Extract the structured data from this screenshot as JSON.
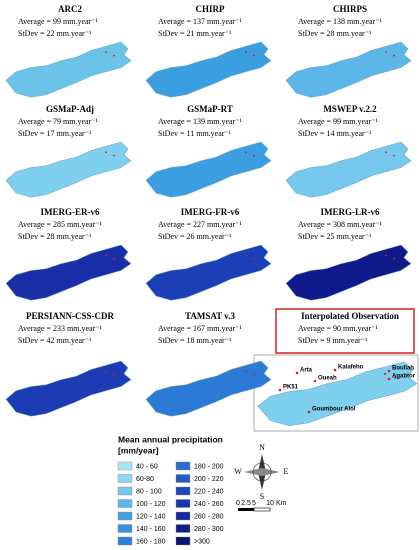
{
  "panels": [
    {
      "title": "ARC2",
      "average": "Average = 99 mm.year⁻¹",
      "stdev": "StDev = 22 mm.year⁻¹",
      "color": "#6cc3e8"
    },
    {
      "title": "CHIRP",
      "average": "Average = 137 mm.year⁻¹",
      "stdev": "StDev = 21 mm.year⁻¹",
      "color": "#3a9ee0"
    },
    {
      "title": "CHIRPS",
      "average": "Average = 138 mm.year⁻¹",
      "stdev": "StDev = 28 mm.year⁻¹",
      "color": "#5cb6e8"
    },
    {
      "title": "GSMaP-Adj",
      "average": "Average = 79 mm.year⁻¹",
      "stdev": "StDev = 17 mm.year⁻¹",
      "color": "#7fd0ee"
    },
    {
      "title": "GSMaP-RT",
      "average": "Average = 139 mm.year⁻¹",
      "stdev": "StDev = 11 mm.year⁻¹",
      "color": "#3a9ee0"
    },
    {
      "title": "MSWEP v.2.2",
      "average": "Average = 99 mm.year⁻¹",
      "stdev": "StDev = 14 mm.year⁻¹",
      "color": "#76c8ec"
    },
    {
      "title": "IMERG-ER-v6",
      "average": "Average = 285 mm.year⁻¹",
      "stdev": "StDev = 28 mm.year⁻¹",
      "color": "#1a2ea8"
    },
    {
      "title": "IMERG-FR-v6",
      "average": "Average = 227 mm.year⁻¹",
      "stdev": "StDev = 26 mm.year⁻¹",
      "color": "#1c3fb8"
    },
    {
      "title": "IMERG-LR-v6",
      "average": "Average = 308 mm.year⁻¹",
      "stdev": "StDev = 25 mm.year⁻¹",
      "color": "#101a8a"
    },
    {
      "title": "PERSIANN-CSS-CDR",
      "average": "Average = 233 mm.year⁻¹",
      "stdev": "StDev = 42 mm.year⁻¹",
      "color": "#1b3cb5"
    },
    {
      "title": "TAMSAT v.3",
      "average": "Average = 167 mm.year⁻¹",
      "stdev": "StDev = 18 mm.year⁻¹",
      "color": "#2a7ad6"
    },
    {
      "title": "Interpolated Observation",
      "average": "Average = 90 mm.year⁻¹",
      "stdev": "StDev = 9 mm.year⁻¹",
      "color": "#7fd0ee"
    }
  ],
  "stations": [
    "Arta",
    "Kalafeho",
    "Oueah",
    "Boullah",
    "Agabtor",
    "PK51",
    "Goumbour Alol"
  ],
  "legend": {
    "title": "Mean annual precipitation",
    "unit": "[mm/year]",
    "items": [
      {
        "label": "40 - 60",
        "color": "#a8e6f0"
      },
      {
        "label": "60-80",
        "color": "#8cd8ee"
      },
      {
        "label": "80 - 100",
        "color": "#76c8ec"
      },
      {
        "label": "100 - 120",
        "color": "#5cb6e8"
      },
      {
        "label": "120 - 140",
        "color": "#459fe0"
      },
      {
        "label": "140 - 160",
        "color": "#3a8fdb"
      },
      {
        "label": "160 - 180",
        "color": "#2f7fd6"
      },
      {
        "label": "180 - 200",
        "color": "#2a6fd0"
      },
      {
        "label": "200 - 220",
        "color": "#2458c4"
      },
      {
        "label": "220 - 240",
        "color": "#1f45b8"
      },
      {
        "label": "240 - 260",
        "color": "#1a36aa"
      },
      {
        "label": "260 - 280",
        "color": "#152a9c"
      },
      {
        "label": "280 - 300",
        "color": "#101e8a"
      },
      {
        "label": ">300",
        "color": "#0a1470"
      }
    ]
  },
  "compass": {
    "n": "N",
    "s": "S",
    "e": "E",
    "w": "W"
  },
  "scale": {
    "ticks": [
      "0",
      "2.5",
      "5",
      "10"
    ],
    "unit": "Km"
  }
}
